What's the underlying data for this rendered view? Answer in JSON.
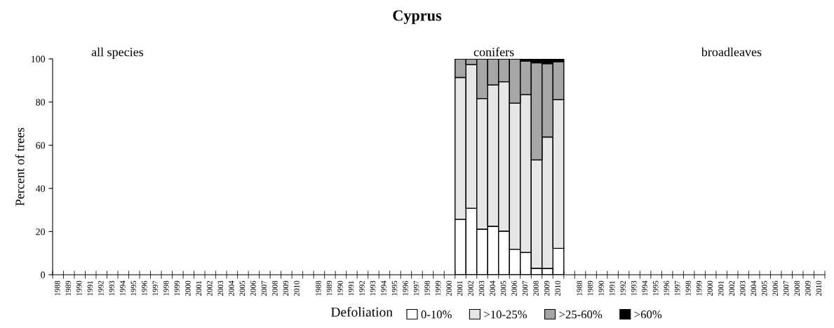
{
  "chart_data": {
    "type": "bar",
    "stacked": true,
    "title": "Cyprus",
    "ylabel": "Percent of trees",
    "legend_title": "Defoliation",
    "legend": "bottom",
    "categories": [
      "1988",
      "1989",
      "1990",
      "1991",
      "1992",
      "1993",
      "1994",
      "1995",
      "1996",
      "1997",
      "1998",
      "1999",
      "2000",
      "2001",
      "2002",
      "2003",
      "2004",
      "2005",
      "2006",
      "2007",
      "2008",
      "2009",
      "2010",
      null,
      "1988",
      "1989",
      "1990",
      "1991",
      "1992",
      "1993",
      "1994",
      "1995",
      "1996",
      "1997",
      "1998",
      "1999",
      "2000",
      "2001",
      "2002",
      "2003",
      "2004",
      "2005",
      "2006",
      "2007",
      "2008",
      "2009",
      "2010",
      null,
      "1988",
      "1989",
      "1990",
      "1991",
      "1992",
      "1993",
      "1994",
      "1995",
      "1996",
      "1997",
      "1998",
      "1999",
      "2000",
      "2001",
      "2002",
      "2003",
      "2004",
      "2005",
      "2006",
      "2007",
      "2008",
      "2009",
      "2010"
    ],
    "series": [
      {
        "name": "0-10%",
        "color": "#ffffff",
        "values": [
          null,
          null,
          null,
          null,
          null,
          null,
          null,
          null,
          null,
          null,
          null,
          null,
          null,
          null,
          null,
          null,
          null,
          null,
          null,
          null,
          null,
          null,
          null,
          null,
          null,
          null,
          null,
          null,
          null,
          null,
          null,
          null,
          null,
          null,
          null,
          null,
          null,
          25.7,
          30.8,
          21.1,
          22.5,
          20.2,
          11.8,
          10.3,
          3.0,
          2.9,
          12.2,
          null,
          null,
          null,
          null,
          null,
          null,
          null,
          null,
          null,
          null,
          null,
          null,
          null,
          null,
          null,
          null,
          null,
          null,
          null,
          null,
          null,
          null,
          null,
          null
        ]
      },
      {
        "name": ">10-25%",
        "color": "#e6e6e6",
        "values": [
          null,
          null,
          null,
          null,
          null,
          null,
          null,
          null,
          null,
          null,
          null,
          null,
          null,
          null,
          null,
          null,
          null,
          null,
          null,
          null,
          null,
          null,
          null,
          null,
          null,
          null,
          null,
          null,
          null,
          null,
          null,
          null,
          null,
          null,
          null,
          null,
          null,
          65.7,
          66.5,
          60.5,
          65.4,
          69.2,
          67.7,
          73.2,
          50.2,
          60.9,
          68.9,
          null,
          null,
          null,
          null,
          null,
          null,
          null,
          null,
          null,
          null,
          null,
          null,
          null,
          null,
          null,
          null,
          null,
          null,
          null,
          null,
          null,
          null,
          null,
          null
        ]
      },
      {
        "name": ">25-60%",
        "color": "#a6a6a6",
        "values": [
          null,
          null,
          null,
          null,
          null,
          null,
          null,
          null,
          null,
          null,
          null,
          null,
          null,
          null,
          null,
          null,
          null,
          null,
          null,
          null,
          null,
          null,
          null,
          null,
          null,
          null,
          null,
          null,
          null,
          null,
          null,
          null,
          null,
          null,
          null,
          null,
          null,
          8.6,
          2.7,
          18.4,
          12.1,
          10.6,
          20.5,
          15.4,
          45.0,
          34.0,
          17.5,
          null,
          null,
          null,
          null,
          null,
          null,
          null,
          null,
          null,
          null,
          null,
          null,
          null,
          null,
          null,
          null,
          null,
          null,
          null,
          null,
          null,
          null,
          null,
          null
        ]
      },
      {
        "name": ">60%",
        "color": "#000000",
        "values": [
          null,
          null,
          null,
          null,
          null,
          null,
          null,
          null,
          null,
          null,
          null,
          null,
          null,
          null,
          null,
          null,
          null,
          null,
          null,
          null,
          null,
          null,
          null,
          null,
          null,
          null,
          null,
          null,
          null,
          null,
          null,
          null,
          null,
          null,
          null,
          null,
          null,
          0,
          0,
          0,
          0,
          0,
          0,
          1.1,
          1.8,
          2.2,
          1.4,
          null,
          null,
          null,
          null,
          null,
          null,
          null,
          null,
          null,
          null,
          null,
          null,
          null,
          null,
          null,
          null,
          null,
          null,
          null,
          null,
          null,
          null,
          null,
          null
        ]
      }
    ],
    "ylim": [
      0,
      100
    ],
    "yticks": [
      0,
      20,
      40,
      60,
      80,
      100
    ],
    "grid": false,
    "annotations": [
      "all species",
      "conifers",
      "broadleaves"
    ]
  }
}
